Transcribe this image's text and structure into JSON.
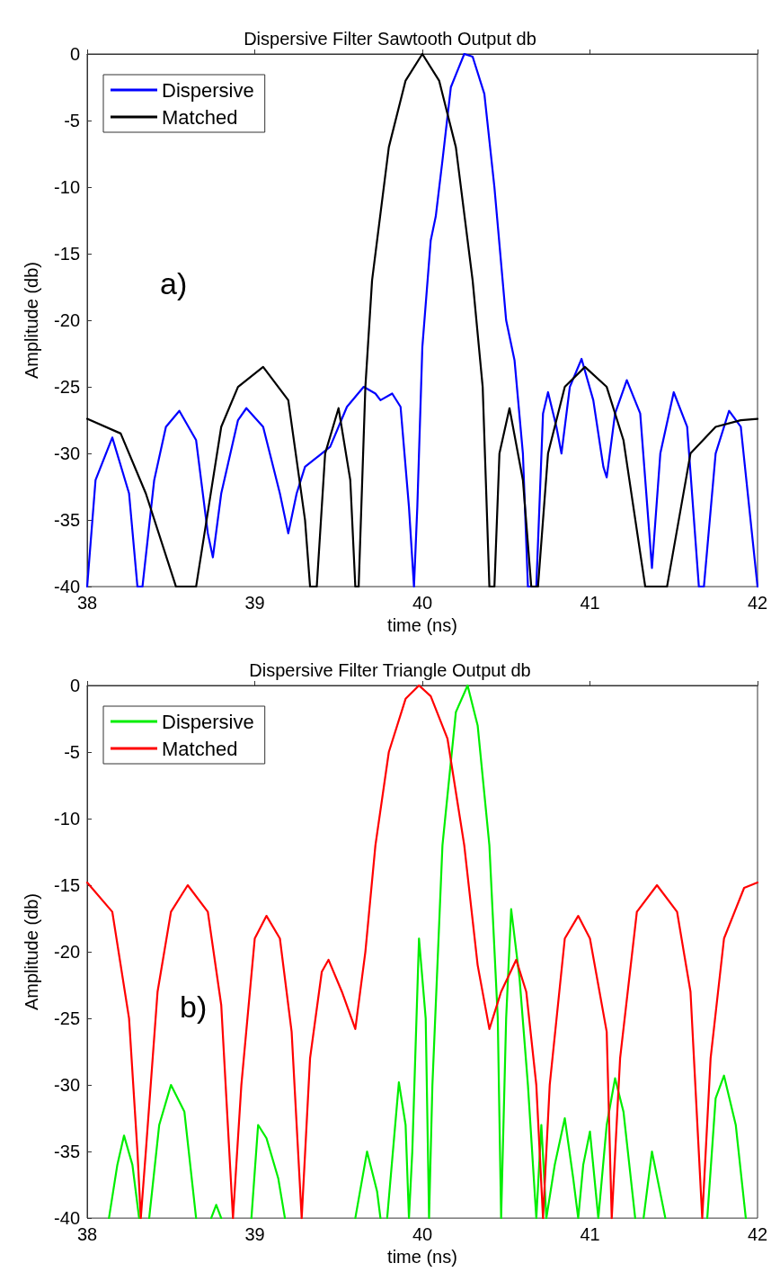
{
  "chart_data": [
    {
      "type": "line",
      "title": "Dispersive Filter Sawtooth Output db",
      "xlabel": "time (ns)",
      "ylabel": "Amplitude (db)",
      "annotations": [
        "a)"
      ],
      "xlim": [
        38,
        42
      ],
      "ylim": [
        -40,
        0
      ],
      "xticks": [
        38,
        39,
        40,
        41,
        42
      ],
      "yticks": [
        -40,
        -35,
        -30,
        -25,
        -20,
        -15,
        -10,
        -5,
        0
      ],
      "grid": false,
      "legend": "top left",
      "line_style": "solid",
      "marker": "none",
      "series": [
        {
          "name": "Dispersive",
          "color": "#0000ff",
          "x": [
            38.0,
            38.05,
            38.15,
            38.25,
            38.3,
            38.33,
            38.4,
            38.47,
            38.55,
            38.65,
            38.72,
            38.75,
            38.8,
            38.9,
            38.95,
            39.05,
            39.15,
            39.2,
            39.25,
            39.3,
            39.38,
            39.45,
            39.55,
            39.65,
            39.72,
            39.75,
            39.82,
            39.87,
            39.92,
            39.95,
            39.97,
            40.0,
            40.05,
            40.08,
            40.12,
            40.17,
            40.25,
            40.3,
            40.37,
            40.43,
            40.5,
            40.55,
            40.6,
            40.63,
            40.68,
            40.72,
            40.75,
            40.8,
            40.83,
            40.88,
            40.95,
            41.02,
            41.08,
            41.1,
            41.15,
            41.22,
            41.3,
            41.37,
            41.42,
            41.5,
            41.58,
            41.65,
            41.68,
            41.75,
            41.83,
            41.9,
            42.0
          ],
          "values": [
            -40,
            -32,
            -28.8,
            -33,
            -40,
            -40,
            -32,
            -28,
            -26.8,
            -29,
            -36,
            -37.8,
            -33,
            -27.5,
            -26.6,
            -28,
            -33,
            -36,
            -33,
            -31,
            -30.2,
            -29.5,
            -26.5,
            -25,
            -25.5,
            -26,
            -25.5,
            -26.5,
            -34,
            -40,
            -34,
            -22,
            -14,
            -12.2,
            -8,
            -2.5,
            0,
            -0.2,
            -3,
            -10,
            -20,
            -23,
            -30,
            -40,
            -40,
            -27,
            -25.4,
            -28,
            -30,
            -25,
            -22.9,
            -26,
            -31,
            -31.8,
            -27,
            -24.5,
            -27,
            -38.6,
            -30,
            -25.4,
            -28,
            -40,
            -40,
            -30,
            -26.8,
            -28,
            -40
          ]
        },
        {
          "name": "Matched",
          "color": "#000000",
          "x": [
            38.0,
            38.2,
            38.35,
            38.53,
            38.65,
            38.8,
            38.9,
            39.05,
            39.2,
            39.3,
            39.33,
            39.37,
            39.42,
            39.5,
            39.57,
            39.6,
            39.62,
            39.66,
            39.7,
            39.8,
            39.9,
            40.0,
            40.1,
            40.2,
            40.3,
            40.36,
            40.4,
            40.43,
            40.46,
            40.52,
            40.6,
            40.65,
            40.69,
            40.75,
            40.85,
            40.97,
            41.1,
            41.2,
            41.33,
            41.46,
            41.6,
            41.75,
            41.9,
            42.0
          ],
          "values": [
            -27.4,
            -28.5,
            -33,
            -40,
            -40,
            -28,
            -25,
            -23.5,
            -26,
            -35,
            -40,
            -40,
            -30,
            -26.6,
            -32,
            -40,
            -40,
            -25,
            -17,
            -7,
            -2,
            0,
            -2,
            -7,
            -17,
            -25,
            -40,
            -40,
            -30,
            -26.6,
            -32,
            -40,
            -40,
            -30,
            -25,
            -23.5,
            -25,
            -29,
            -40,
            -40,
            -30,
            -28,
            -27.5,
            -27.4
          ]
        }
      ]
    },
    {
      "type": "line",
      "title": "Dispersive Filter Triangle Output db",
      "xlabel": "time (ns)",
      "ylabel": "Amplitude (db)",
      "annotations": [
        "b)"
      ],
      "xlim": [
        38,
        42
      ],
      "ylim": [
        -40,
        0
      ],
      "xticks": [
        38,
        39,
        40,
        41,
        42
      ],
      "yticks": [
        -40,
        -35,
        -30,
        -25,
        -20,
        -15,
        -10,
        -5,
        0
      ],
      "grid": false,
      "legend": "top left",
      "line_style": "solid",
      "marker": "none",
      "series": [
        {
          "name": "Dispersive",
          "color": "#00ee00",
          "x": [
            38.13,
            38.18,
            38.22,
            38.27,
            38.31,
            38.34,
            38.37,
            38.43,
            38.5,
            38.58,
            38.65,
            38.7,
            38.74,
            38.77,
            38.8,
            38.9,
            38.98,
            39.02,
            39.07,
            39.14,
            39.18,
            39.4,
            39.6,
            39.67,
            39.73,
            39.75,
            39.77,
            39.79,
            39.86,
            39.9,
            39.92,
            39.94,
            39.98,
            40.02,
            40.04,
            40.06,
            40.12,
            40.2,
            40.27,
            40.33,
            40.4,
            40.45,
            40.47,
            40.5,
            40.53,
            40.58,
            40.63,
            40.68,
            40.71,
            40.74,
            40.79,
            40.85,
            40.9,
            40.93,
            40.96,
            41.0,
            41.05,
            41.1,
            41.15,
            41.2,
            41.27,
            41.3,
            41.32,
            41.37,
            41.45,
            41.6,
            41.7,
            41.75,
            41.8,
            41.87,
            41.93
          ],
          "values": [
            -40,
            -36,
            -33.8,
            -36,
            -40,
            null,
            -40,
            -33,
            -30,
            -32,
            -40,
            null,
            -40,
            -39,
            -40,
            null,
            -40,
            -33,
            -34,
            -37,
            -40,
            null,
            -40,
            -35,
            -38,
            -40,
            null,
            -40,
            -29.8,
            -33,
            -40,
            -35,
            -19,
            -25,
            -40,
            -30,
            -12,
            -2,
            0,
            -3,
            -12,
            -25,
            -40,
            -25,
            -16.8,
            -22,
            -30,
            -40,
            -33,
            -40,
            -36,
            -32.5,
            -37,
            -40,
            -36,
            -33.5,
            -40,
            -33,
            -29.5,
            -32,
            -40,
            null,
            -40,
            -35,
            -40,
            null,
            -40,
            -31,
            -29.3,
            -33,
            -40
          ]
        },
        {
          "name": "Matched",
          "color": "#ff0000",
          "x": [
            38.0,
            38.15,
            38.25,
            38.3,
            38.32,
            38.35,
            38.42,
            38.5,
            38.6,
            38.72,
            38.8,
            38.87,
            38.92,
            39.0,
            39.07,
            39.15,
            39.22,
            39.28,
            39.33,
            39.4,
            39.44,
            39.52,
            39.6,
            39.66,
            39.72,
            39.8,
            39.9,
            39.98,
            40.05,
            40.15,
            40.25,
            40.33,
            40.4,
            40.47,
            40.56,
            40.62,
            40.68,
            40.72,
            40.76,
            40.85,
            40.93,
            41.0,
            41.1,
            41.13,
            41.18,
            41.28,
            41.4,
            41.52,
            41.6,
            41.67,
            41.72,
            41.8,
            41.92,
            42.0
          ],
          "values": [
            -14.8,
            -17,
            -25,
            -35,
            -40,
            -35,
            -23,
            -17,
            -15,
            -17,
            -24,
            -40,
            -30,
            -19,
            -17.3,
            -19,
            -26,
            -40,
            -28,
            -21.5,
            -20.6,
            -23,
            -25.8,
            -20,
            -12,
            -5,
            -1,
            0,
            -0.8,
            -4,
            -12,
            -21,
            -25.8,
            -23,
            -20.6,
            -23,
            -30,
            -40,
            -30,
            -19,
            -17.3,
            -19,
            -26,
            -40,
            -28,
            -17,
            -15,
            -17,
            -23,
            -40,
            -28,
            -19,
            -15.2,
            -14.8
          ]
        }
      ]
    }
  ]
}
